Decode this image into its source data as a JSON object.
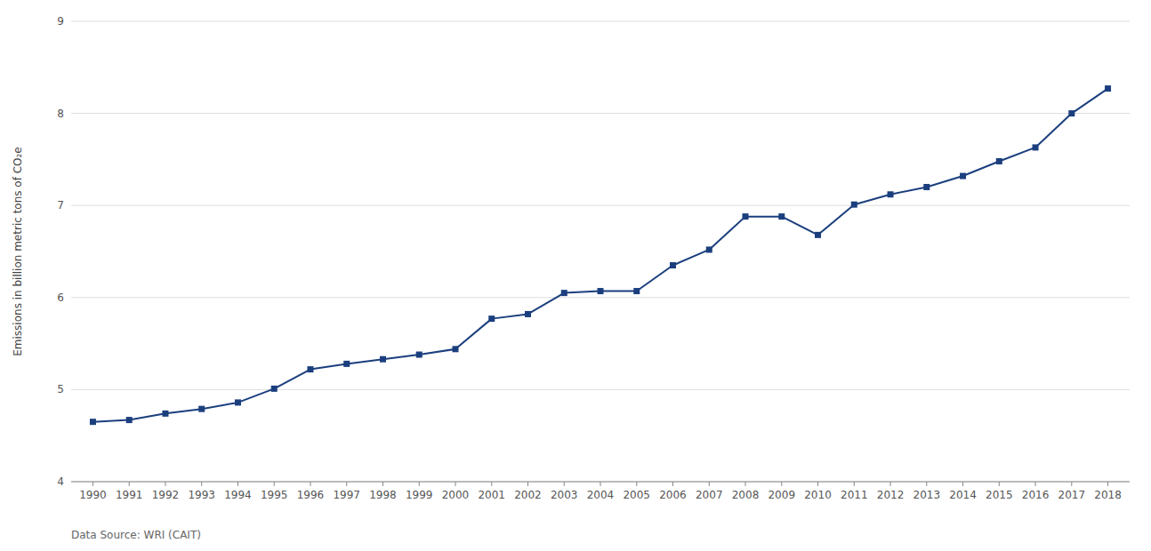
{
  "chart_data": {
    "type": "line",
    "ylabel": "Emissions in billion metric tons of CO₂e",
    "source": "Data Source: WRI (CAIT)",
    "x": [
      1990,
      1991,
      1992,
      1993,
      1994,
      1995,
      1996,
      1997,
      1998,
      1999,
      2000,
      2001,
      2002,
      2003,
      2004,
      2005,
      2006,
      2007,
      2008,
      2009,
      2010,
      2011,
      2012,
      2013,
      2014,
      2015,
      2016,
      2017,
      2018
    ],
    "values": [
      4.65,
      4.67,
      4.74,
      4.79,
      4.86,
      5.01,
      5.22,
      5.28,
      5.33,
      5.38,
      5.44,
      5.77,
      5.82,
      6.05,
      6.07,
      6.07,
      6.35,
      6.52,
      6.88,
      6.88,
      6.68,
      7.01,
      7.12,
      7.2,
      7.32,
      7.48,
      7.63,
      8.0,
      8.27
    ],
    "color": "#1b3f7e",
    "marker": "square",
    "grid": true,
    "xlim": [
      1989.4,
      2018.6
    ],
    "xticks": [
      1990,
      1991,
      1992,
      1993,
      1994,
      1995,
      1996,
      1997,
      1998,
      1999,
      2000,
      2001,
      2002,
      2003,
      2004,
      2005,
      2006,
      2007,
      2008,
      2009,
      2010,
      2011,
      2012,
      2013,
      2014,
      2015,
      2016,
      2017,
      2018
    ],
    "ylim": [
      4,
      9
    ],
    "yticks": [
      4,
      5,
      6,
      7,
      8,
      9
    ]
  }
}
